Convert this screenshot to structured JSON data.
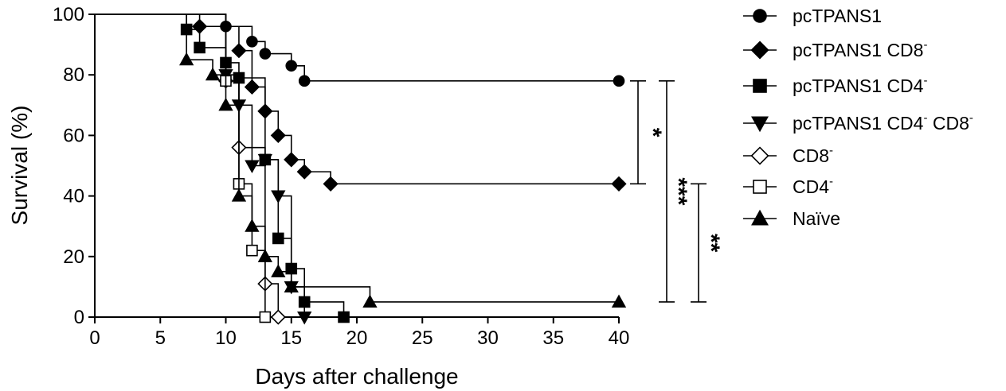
{
  "chart_data": {
    "type": "line",
    "subtype": "kaplan-meier-survival",
    "title": "",
    "xlabel": "Days after challenge",
    "ylabel": "Survival (%)",
    "xlim": [
      0,
      40
    ],
    "ylim": [
      0,
      100
    ],
    "x_ticks": [
      0,
      5,
      10,
      15,
      20,
      25,
      30,
      35,
      40
    ],
    "y_ticks": [
      0,
      20,
      40,
      60,
      80,
      100
    ],
    "grid": false,
    "legend_position": "right",
    "series": [
      {
        "name": "pcTPANS1",
        "marker": "circle",
        "filled": true,
        "x": [
          0,
          10,
          12,
          13,
          15,
          16,
          40
        ],
        "y": [
          100,
          96,
          91,
          87,
          83,
          78,
          78
        ]
      },
      {
        "name": "pcTPANS1 CD8",
        "name_sup": "-",
        "marker": "diamond",
        "filled": true,
        "x": [
          0,
          8,
          11,
          12,
          13,
          14,
          15,
          16,
          18,
          40
        ],
        "y": [
          100,
          96,
          88,
          76,
          68,
          60,
          52,
          48,
          44,
          44
        ]
      },
      {
        "name": "pcTPANS1 CD4",
        "name_sup": "-",
        "marker": "square",
        "filled": true,
        "x": [
          0,
          7,
          8,
          10,
          11,
          13,
          14,
          15,
          16,
          19
        ],
        "y": [
          100,
          95,
          89,
          84,
          79,
          52,
          26,
          16,
          5,
          0
        ]
      },
      {
        "name": "pcTPANS1 CD4",
        "name_sup": "-",
        "name_suffix": " CD8",
        "name_suffix_sup": "-",
        "marker": "triangle-down",
        "filled": true,
        "x": [
          0,
          10,
          11,
          12,
          13,
          14,
          15,
          16
        ],
        "y": [
          100,
          80,
          70,
          50,
          52,
          40,
          10,
          0
        ]
      },
      {
        "name": "CD8",
        "name_sup": "-",
        "marker": "diamond",
        "filled": false,
        "x": [
          0,
          10,
          11,
          13,
          14
        ],
        "y": [
          100,
          78,
          56,
          11,
          0
        ]
      },
      {
        "name": "CD4",
        "name_sup": "-",
        "marker": "square",
        "filled": false,
        "x": [
          0,
          10,
          11,
          12,
          13
        ],
        "y": [
          100,
          78,
          44,
          22,
          0
        ]
      },
      {
        "name": "Naïve",
        "marker": "triangle-up",
        "filled": true,
        "x": [
          0,
          7,
          9,
          10,
          11,
          12,
          13,
          14,
          15,
          21,
          40
        ],
        "y": [
          100,
          85,
          80,
          70,
          40,
          30,
          20,
          15,
          10,
          5,
          5
        ]
      }
    ],
    "significance": [
      {
        "label": "*",
        "y_top": 78,
        "y_bottom": 44
      },
      {
        "label": "***",
        "y_top": 78,
        "y_bottom": 5
      },
      {
        "label": "**",
        "y_top": 44,
        "y_bottom": 5
      }
    ]
  }
}
